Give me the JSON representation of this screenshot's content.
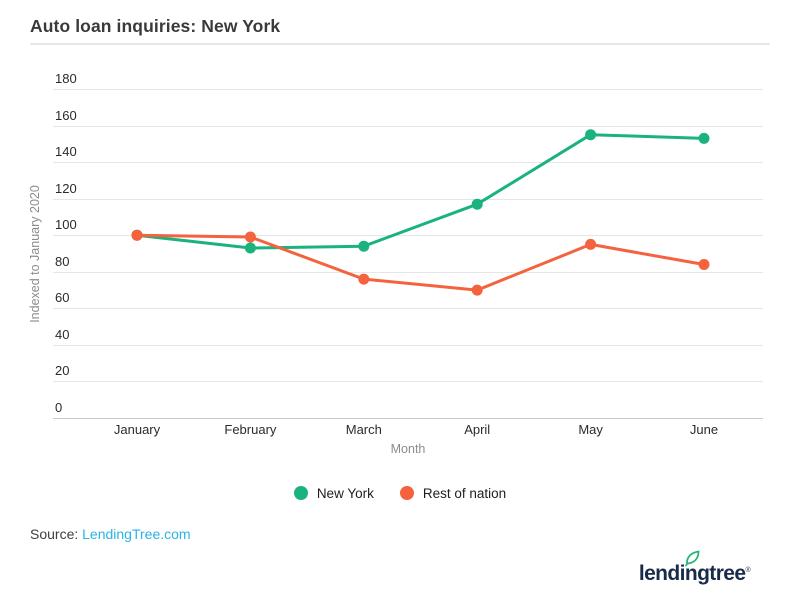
{
  "header": {
    "title": "Auto loan inquiries: New York"
  },
  "chart_data": {
    "type": "line",
    "x": [
      "January",
      "February",
      "March",
      "April",
      "May",
      "June"
    ],
    "series": [
      {
        "name": "New York",
        "color": "#1ab27d",
        "values": [
          100,
          93,
          94,
          117,
          155,
          153
        ]
      },
      {
        "name": "Rest of nation",
        "color": "#f4623e",
        "values": [
          100,
          99,
          76,
          70,
          95,
          84
        ]
      }
    ],
    "title": "Auto loan inquiries: New York",
    "xlabel": "Month",
    "ylabel": "Indexed to January 2020",
    "ylim": [
      0,
      180
    ],
    "ytick_step": 20,
    "grid": "horizontal",
    "legend_position": "bottom"
  },
  "footer": {
    "source_label": "Source:",
    "source_link": "LendingTree.com",
    "logo_text": "lendingtree",
    "logo_reg": "®"
  },
  "colors": {
    "series_new_york": "#1ab27d",
    "series_rest_of_nation": "#f4623e",
    "source_link": "#2ab4e4",
    "logo_navy": "#182b49",
    "logo_leaf_green": "#26b573",
    "gridline": "#e6e6e6",
    "axis_line": "#c9c9c9"
  }
}
